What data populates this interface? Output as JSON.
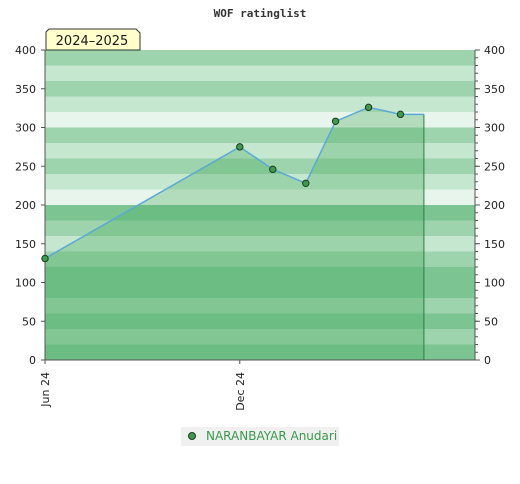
{
  "chart_data": {
    "type": "area",
    "title": "WOF ratinglist",
    "season_badge": "2024–2025",
    "xlabel": "",
    "ylabel": "",
    "ylim": [
      0,
      400
    ],
    "y_ticks": [
      0,
      50,
      100,
      150,
      200,
      250,
      300,
      350,
      400
    ],
    "y_tick_labels": [
      "0",
      "50",
      "100",
      "150",
      "200",
      "250",
      "300",
      "350",
      "400"
    ],
    "x_range": [
      "2024-06-01",
      "2025-07-10"
    ],
    "x_ticks": [
      {
        "date": "2024-06-01",
        "label": "Jun 24"
      },
      {
        "date": "2024-12-01",
        "label": "Dec 24"
      }
    ],
    "grid": true,
    "legend_position": "bottom-center",
    "series": [
      {
        "name": "NARANBAYAR Anudari",
        "color": "#5aa9d6",
        "marker_color": "#3f9a50",
        "x": [
          "2024-06-01",
          "2024-12-01",
          "2025-01-01",
          "2025-02-01",
          "2025-03-01",
          "2025-04-01",
          "2025-05-01"
        ],
        "values": [
          131,
          275,
          246,
          228,
          308,
          326,
          317
        ]
      }
    ],
    "colors": {
      "band_dark": "#7cc593",
      "band_mid": "#9dd3ad",
      "band_light": "#c5e6cf",
      "band_pale": "#e8f5ec",
      "fill": "#4fae66",
      "line": "#5aa9d6",
      "axis": "#555555",
      "badge_bg": "#ffffcc"
    }
  }
}
